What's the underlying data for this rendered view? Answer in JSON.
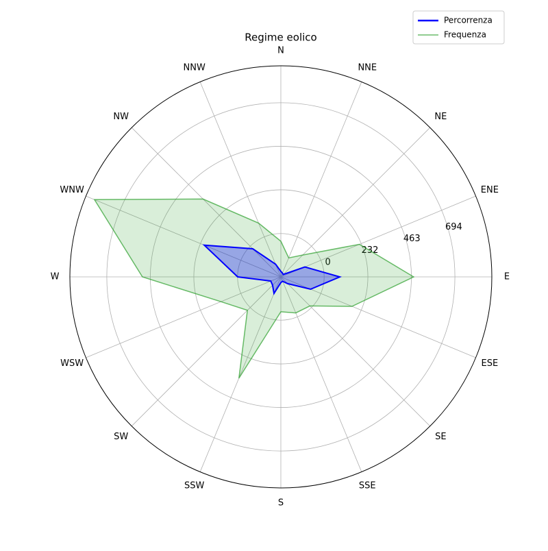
{
  "chart_data": {
    "type": "radar",
    "title": "Regime eolico",
    "categories": [
      "N",
      "NNE",
      "NE",
      "ENE",
      "E",
      "ESE",
      "SE",
      "SSE",
      "S",
      "SSW",
      "SW",
      "WSW",
      "W",
      "WNW",
      "NW",
      "NNW"
    ],
    "series": [
      {
        "name": "Percorrenza",
        "color": "#0000ff",
        "values": [
          -201,
          -208,
          -212,
          -92,
          83,
          -59,
          -179,
          -205,
          -200,
          -135,
          -168,
          -172,
          -1,
          210,
          -19,
          -157
        ]
      },
      {
        "name": "Frequenza",
        "color": "#2ca02c",
        "values": [
          -41,
          -121,
          -66,
          221,
          475,
          179,
          -12,
          -23,
          -45,
          352,
          21,
          114,
          505,
          841,
          354,
          79
        ]
      }
    ],
    "ylim": [
      -230,
      890
    ],
    "yticks": [
      0,
      232,
      463,
      694
    ],
    "grid": true,
    "legend": "upper right"
  }
}
